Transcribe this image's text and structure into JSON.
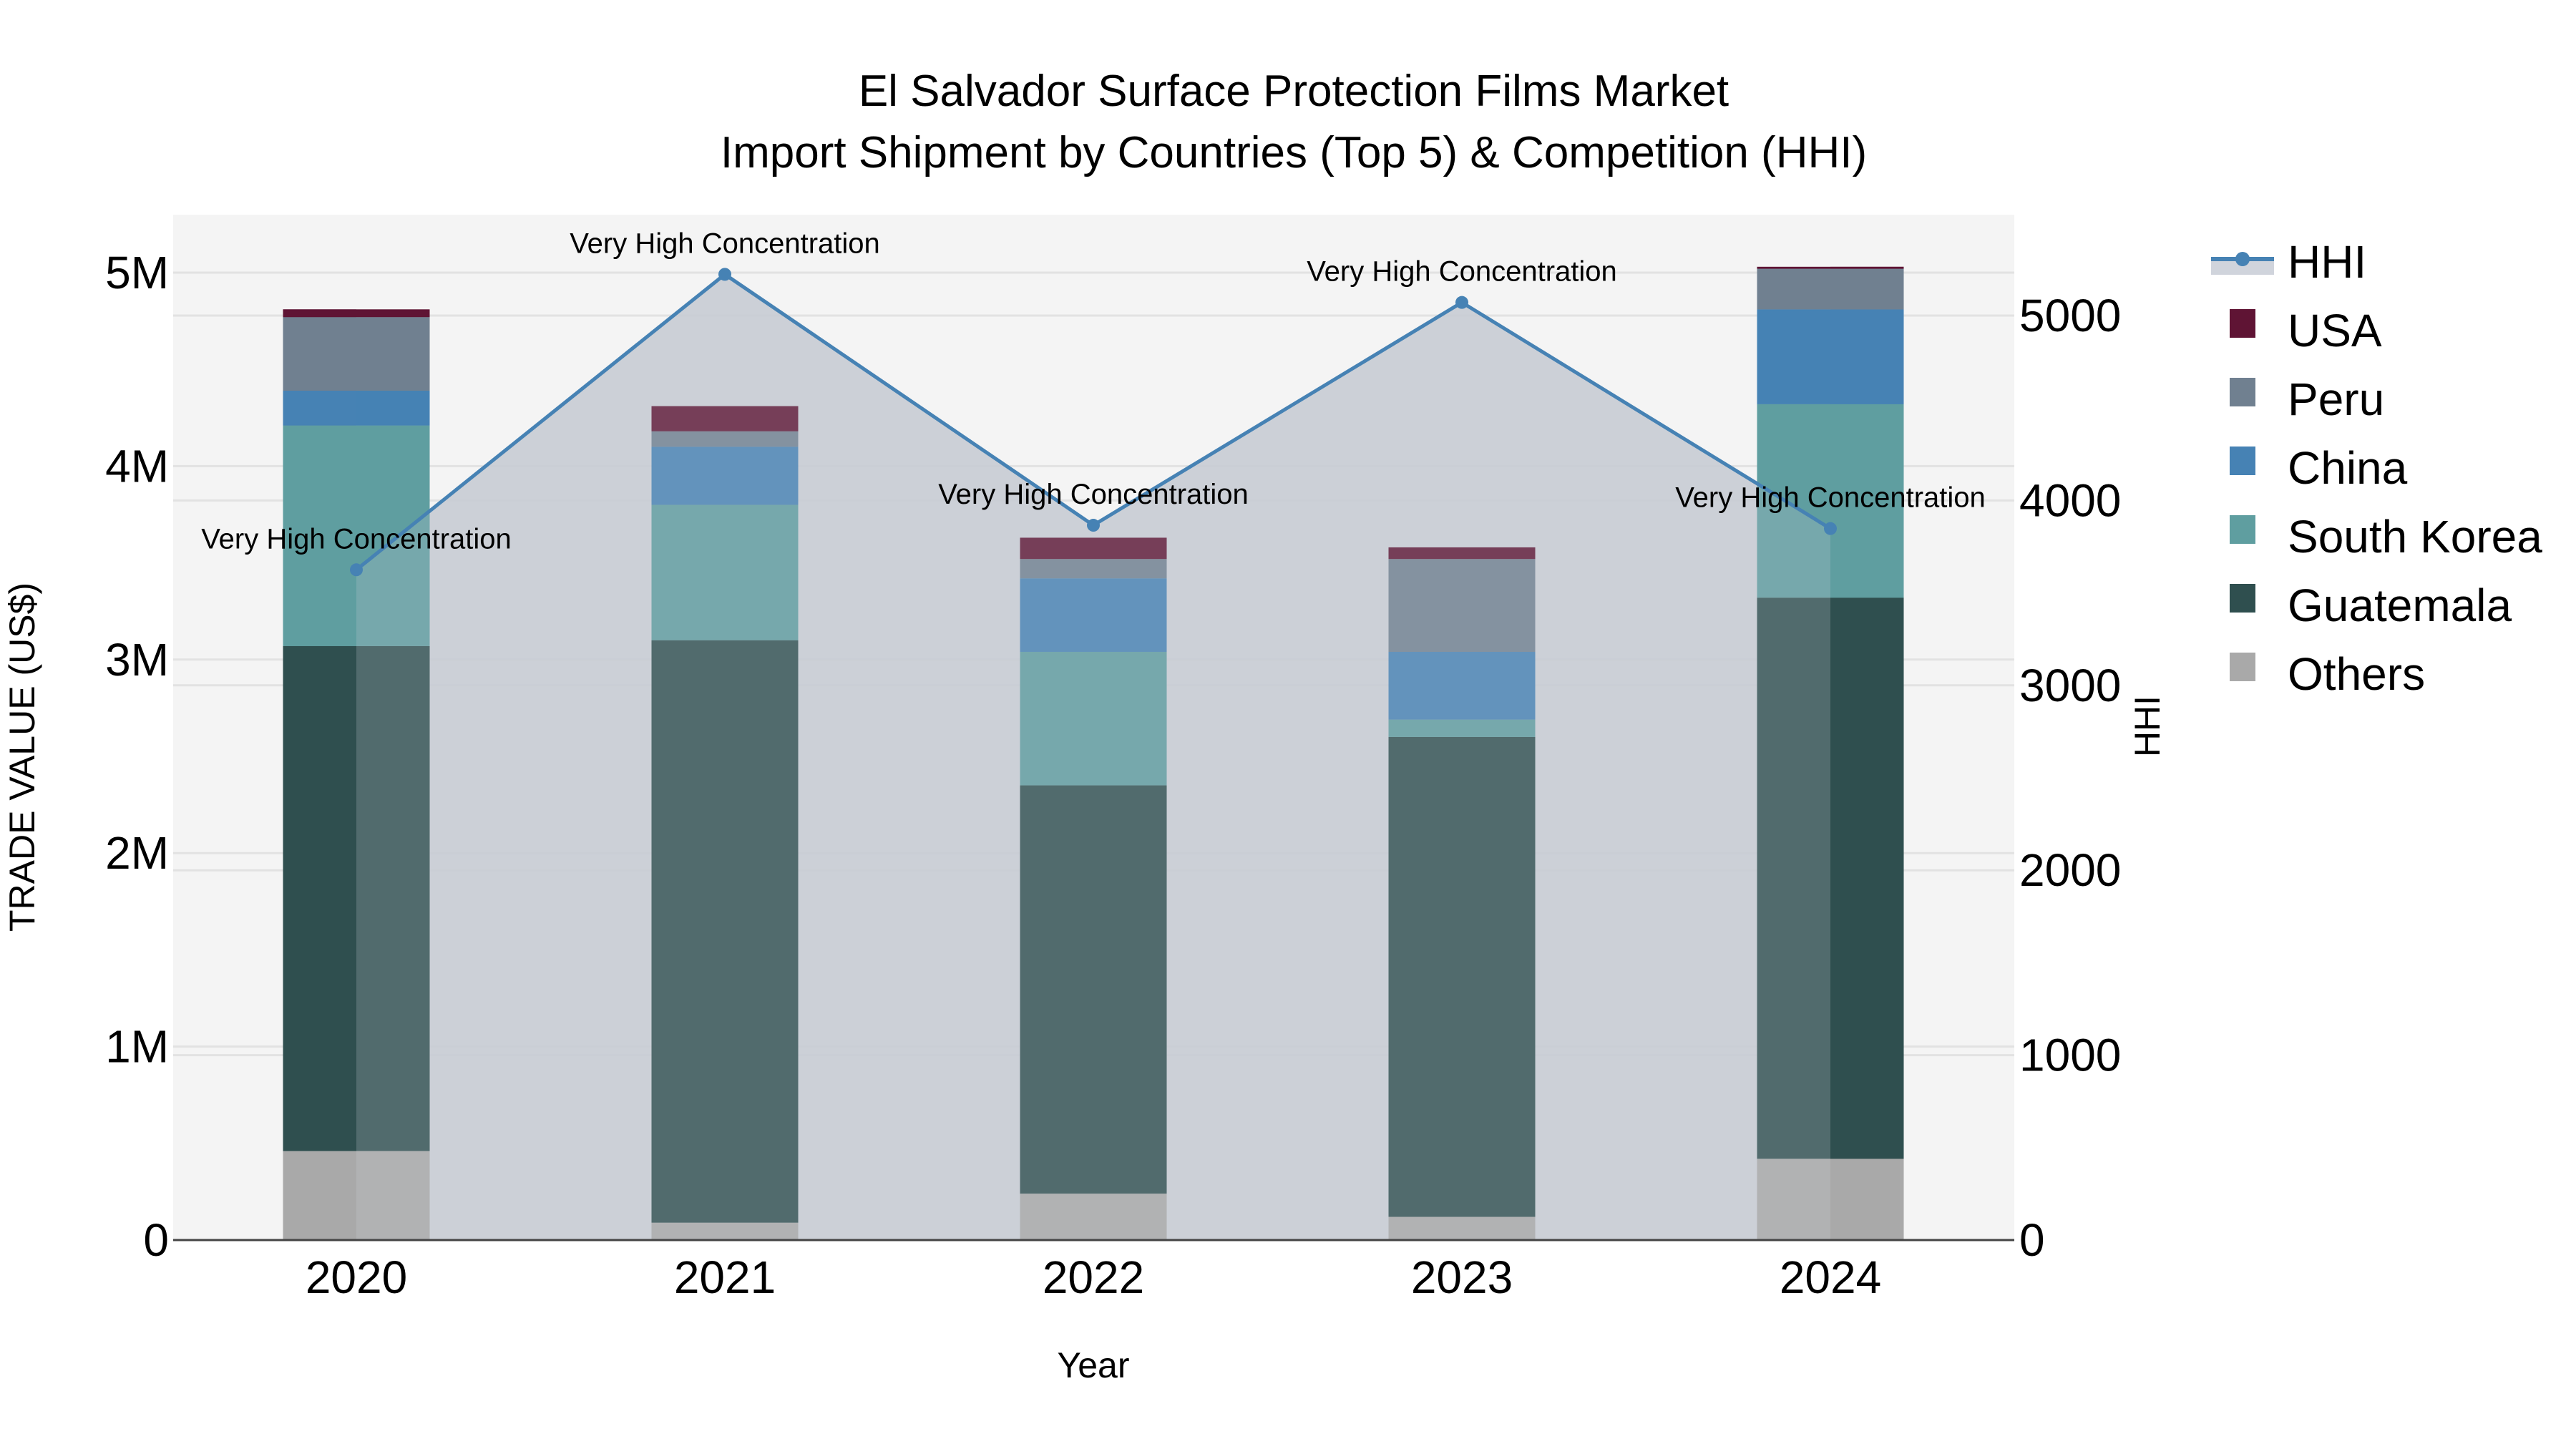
{
  "title": {
    "line1": "El Salvador Surface Protection Films Market",
    "line2": "Import Shipment by Countries (Top 5) & Competition (HHI)"
  },
  "axes": {
    "x_title": "Year",
    "y_left_title": "TRADE VALUE (US$)",
    "y_right_title": "HHI",
    "y_left_ticks": [
      "0",
      "1M",
      "2M",
      "3M",
      "4M",
      "5M"
    ],
    "y_right_ticks": [
      "0",
      "1000",
      "2000",
      "3000",
      "4000",
      "5000"
    ]
  },
  "legend": [
    {
      "name": "HHI",
      "type": "line",
      "color": "#4682b4"
    },
    {
      "name": "USA",
      "type": "bar",
      "color": "#5f1434"
    },
    {
      "name": "Peru",
      "type": "bar",
      "color": "#708090"
    },
    {
      "name": "China",
      "type": "bar",
      "color": "#4682b4"
    },
    {
      "name": "South Korea",
      "type": "bar",
      "color": "#5f9ea0"
    },
    {
      "name": "Guatemala",
      "type": "bar",
      "color": "#2f4f4f"
    },
    {
      "name": "Others",
      "type": "bar",
      "color": "#a9a9a9"
    }
  ],
  "chart_data": {
    "type": "bar",
    "title": "El Salvador Surface Protection Films Market — Import Shipment by Countries (Top 5) & Competition (HHI)",
    "xlabel": "Year",
    "ylabel": "TRADE VALUE (US$)",
    "y2label": "HHI",
    "stacked": true,
    "categories": [
      "2020",
      "2021",
      "2022",
      "2023",
      "2024"
    ],
    "ylim": [
      0,
      5300000
    ],
    "y2lim": [
      0,
      5550
    ],
    "grid": true,
    "legend_position": "right",
    "series": [
      {
        "name": "Others",
        "color": "#a9a9a9",
        "values": [
          460000,
          90000,
          240000,
          120000,
          420000
        ]
      },
      {
        "name": "Guatemala",
        "color": "#2f4f4f",
        "values": [
          2610000,
          3010000,
          2110000,
          2480000,
          2900000
        ]
      },
      {
        "name": "South Korea",
        "color": "#5f9ea0",
        "values": [
          1140000,
          700000,
          690000,
          90000,
          1000000
        ]
      },
      {
        "name": "China",
        "color": "#4682b4",
        "values": [
          180000,
          300000,
          380000,
          350000,
          490000
        ]
      },
      {
        "name": "Peru",
        "color": "#708090",
        "values": [
          380000,
          80000,
          100000,
          480000,
          210000
        ]
      },
      {
        "name": "USA",
        "color": "#5f1434",
        "values": [
          40000,
          130000,
          110000,
          60000,
          10000
        ]
      }
    ],
    "line_series": {
      "name": "HHI",
      "axis": "right",
      "color": "#4682b4",
      "fill": "area",
      "values": [
        3625,
        5223,
        3866,
        5071,
        3848
      ],
      "annotations": [
        "Very High Concentration",
        "Very High Concentration",
        "Very High Concentration",
        "Very High Concentration",
        "Very High Concentration"
      ]
    }
  }
}
